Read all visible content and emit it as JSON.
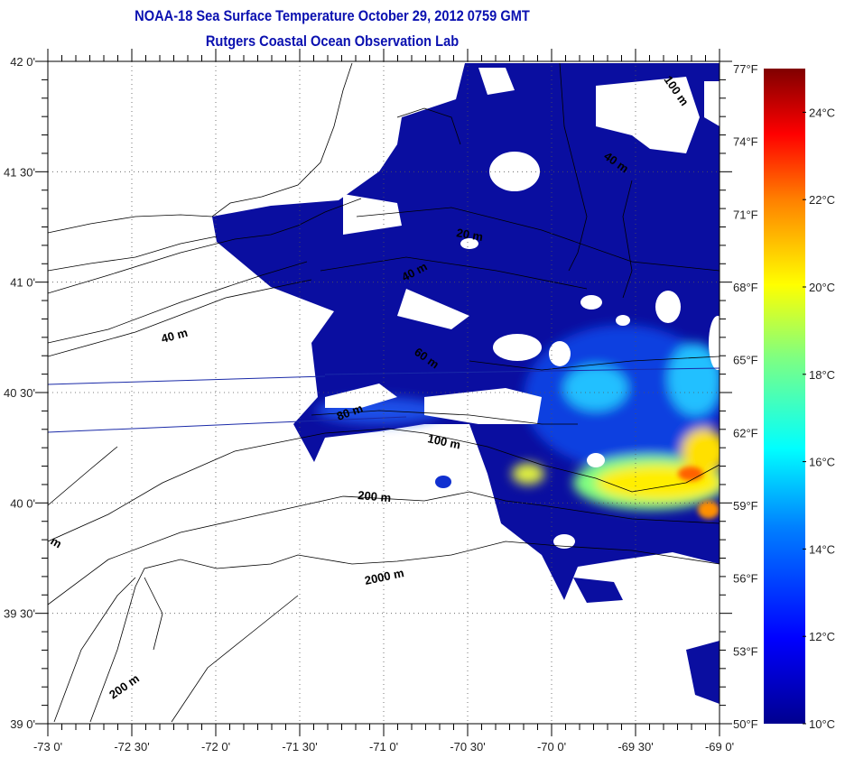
{
  "title": "NOAA-18 Sea Surface Temperature October 29, 2012 0759 GMT",
  "subtitle": "Rutgers Coastal Ocean Observation Lab",
  "map_data": {
    "lon_range": [
      -73,
      -69
    ],
    "lat_range": [
      39,
      42
    ],
    "x_tick_labels": [
      "-73 0'",
      "-72 30'",
      "-72 0'",
      "-71 30'",
      "-71 0'",
      "-70 30'",
      "-70 0'",
      "-69 30'",
      "-69 0'"
    ],
    "y_tick_labels": [
      "42 0'",
      "41 30'",
      "41 0'",
      "40 30'",
      "40 0'",
      "39 30'",
      "39 0'"
    ],
    "grid": "dotted every 30'",
    "contour_labels": [
      "20 m",
      "40 m",
      "40 m",
      "60 m",
      "80 m",
      "100 m",
      "200 m",
      "2000 m",
      "200 m",
      "100 m",
      "m"
    ]
  },
  "colorbar": {
    "range_c": [
      10,
      25
    ],
    "fahrenheit_labels": [
      "77°F",
      "74°F",
      "71°F",
      "68°F",
      "65°F",
      "62°F",
      "59°F",
      "56°F",
      "53°F",
      "50°F"
    ],
    "fahrenheit_values": [
      77,
      74,
      71,
      68,
      65,
      62,
      59,
      56,
      53,
      50
    ],
    "celsius_labels": [
      "24°C",
      "22°C",
      "20°C",
      "18°C",
      "16°C",
      "14°C",
      "12°C",
      "10°C"
    ],
    "celsius_values": [
      24,
      22,
      20,
      18,
      16,
      14,
      12,
      10
    ],
    "colors": [
      "#00008f",
      "#0000ff",
      "#0080ff",
      "#00ffff",
      "#80ff80",
      "#ffff00",
      "#ff8000",
      "#ff0000",
      "#800000"
    ]
  }
}
